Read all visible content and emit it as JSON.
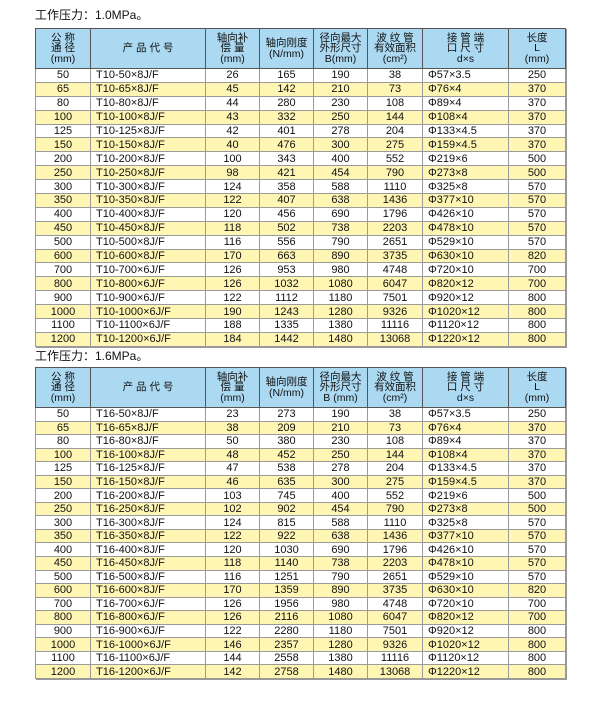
{
  "colors": {
    "header_bg": "#acd9f2",
    "alt_row_bg": "#fff6b4"
  },
  "headers": [
    "公 称\n通 径\n(mm)",
    "产 品 代 号",
    "轴向补\n偿 量\n(mm)",
    "轴向刚度\n(N/mm)",
    "径向最大\n外形尺寸\nB(mm)",
    "波 纹 管\n有效面积\n(cm²)",
    "接 管 端\n口 尺 寸\nd×s",
    "长度\nL\n(mm)"
  ],
  "headers2": [
    "公 称\n通 径\n(mm)",
    "产 品 代 号",
    "轴向补\n偿 量\n(mm)",
    "轴向刚度\n(N/mm)",
    "径向最大\n外形尺寸\nB (mm)",
    "波 纹 管\n有效面积\n(cm²)",
    "接 管 端\n口 尺 寸\nd×s",
    "长度\nL\n(mm)"
  ],
  "tables": [
    {
      "title": "工作压力：1.0MPa。",
      "rows": [
        [
          "50",
          "T10-50×8J/F",
          "26",
          "165",
          "190",
          "38",
          "Φ57×3.5",
          "250"
        ],
        [
          "65",
          "T10-65×8J/F",
          "45",
          "142",
          "210",
          "73",
          "Φ76×4",
          "370"
        ],
        [
          "80",
          "T10-80×8J/F",
          "44",
          "280",
          "230",
          "108",
          "Φ89×4",
          "370"
        ],
        [
          "100",
          "T10-100×8J/F",
          "43",
          "332",
          "250",
          "144",
          "Φ108×4",
          "370"
        ],
        [
          "125",
          "T10-125×8J/F",
          "42",
          "401",
          "278",
          "204",
          "Φ133×4.5",
          "370"
        ],
        [
          "150",
          "T10-150×8J/F",
          "40",
          "476",
          "300",
          "275",
          "Φ159×4.5",
          "370"
        ],
        [
          "200",
          "T10-200×8J/F",
          "100",
          "343",
          "400",
          "552",
          "Φ219×6",
          "500"
        ],
        [
          "250",
          "T10-250×8J/F",
          "98",
          "421",
          "454",
          "790",
          "Φ273×8",
          "500"
        ],
        [
          "300",
          "T10-300×8J/F",
          "124",
          "358",
          "588",
          "1110",
          "Φ325×8",
          "570"
        ],
        [
          "350",
          "T10-350×8J/F",
          "122",
          "407",
          "638",
          "1436",
          "Φ377×10",
          "570"
        ],
        [
          "400",
          "T10-400×8J/F",
          "120",
          "456",
          "690",
          "1796",
          "Φ426×10",
          "570"
        ],
        [
          "450",
          "T10-450×8J/F",
          "118",
          "502",
          "738",
          "2203",
          "Φ478×10",
          "570"
        ],
        [
          "500",
          "T10-500×8J/F",
          "116",
          "556",
          "790",
          "2651",
          "Φ529×10",
          "570"
        ],
        [
          "600",
          "T10-600×8J/F",
          "170",
          "663",
          "890",
          "3735",
          "Φ630×10",
          "820"
        ],
        [
          "700",
          "T10-700×6J/F",
          "126",
          "953",
          "980",
          "4748",
          "Φ720×10",
          "700"
        ],
        [
          "800",
          "T10-800×6J/F",
          "126",
          "1032",
          "1080",
          "6047",
          "Φ820×12",
          "700"
        ],
        [
          "900",
          "T10-900×6J/F",
          "122",
          "1112",
          "1180",
          "7501",
          "Φ920×12",
          "800"
        ],
        [
          "1000",
          "T10-1000×6J/F",
          "190",
          "1243",
          "1280",
          "9326",
          "Φ1020×12",
          "800"
        ],
        [
          "1100",
          "T10-1100×6J/F",
          "188",
          "1335",
          "1380",
          "11116",
          "Φ1120×12",
          "800"
        ],
        [
          "1200",
          "T10-1200×6J/F",
          "184",
          "1442",
          "1480",
          "13068",
          "Φ1220×12",
          "800"
        ]
      ]
    },
    {
      "title": "工作压力：1.6MPa。",
      "rows": [
        [
          "50",
          "T16-50×8J/F",
          "23",
          "273",
          "190",
          "38",
          "Φ57×3.5",
          "250"
        ],
        [
          "65",
          "T16-65×8J/F",
          "38",
          "209",
          "210",
          "73",
          "Φ76×4",
          "370"
        ],
        [
          "80",
          "T16-80×8J/F",
          "50",
          "380",
          "230",
          "108",
          "Φ89×4",
          "370"
        ],
        [
          "100",
          "T16-100×8J/F",
          "48",
          "452",
          "250",
          "144",
          "Φ108×4",
          "370"
        ],
        [
          "125",
          "T16-125×8J/F",
          "47",
          "538",
          "278",
          "204",
          "Φ133×4.5",
          "370"
        ],
        [
          "150",
          "T16-150×8J/F",
          "46",
          "635",
          "300",
          "275",
          "Φ159×4.5",
          "370"
        ],
        [
          "200",
          "T16-200×8J/F",
          "103",
          "745",
          "400",
          "552",
          "Φ219×6",
          "500"
        ],
        [
          "250",
          "T16-250×8J/F",
          "102",
          "902",
          "454",
          "790",
          "Φ273×8",
          "500"
        ],
        [
          "300",
          "T16-300×8J/F",
          "124",
          "815",
          "588",
          "1110",
          "Φ325×8",
          "570"
        ],
        [
          "350",
          "T16-350×8J/F",
          "122",
          "922",
          "638",
          "1436",
          "Φ377×10",
          "570"
        ],
        [
          "400",
          "T16-400×8J/F",
          "120",
          "1030",
          "690",
          "1796",
          "Φ426×10",
          "570"
        ],
        [
          "450",
          "T16-450×8J/F",
          "118",
          "1140",
          "738",
          "2203",
          "Φ478×10",
          "570"
        ],
        [
          "500",
          "T16-500×8J/F",
          "116",
          "1251",
          "790",
          "2651",
          "Φ529×10",
          "570"
        ],
        [
          "600",
          "T16-600×8J/F",
          "170",
          "1359",
          "890",
          "3735",
          "Φ630×10",
          "820"
        ],
        [
          "700",
          "T16-700×6J/F",
          "126",
          "1956",
          "980",
          "4748",
          "Φ720×10",
          "700"
        ],
        [
          "800",
          "T16-800×6J/F",
          "126",
          "2116",
          "1080",
          "6047",
          "Φ820×12",
          "700"
        ],
        [
          "900",
          "T16-900×6J/F",
          "122",
          "2280",
          "1180",
          "7501",
          "Φ920×12",
          "800"
        ],
        [
          "1000",
          "T16-1000×6J/F",
          "146",
          "2357",
          "1280",
          "9326",
          "Φ1020×12",
          "800"
        ],
        [
          "1100",
          "T16-1100×6J/F",
          "144",
          "2558",
          "1380",
          "11116",
          "Φ1120×12",
          "800"
        ],
        [
          "1200",
          "T16-1200×6J/F",
          "142",
          "2758",
          "1480",
          "13068",
          "Φ1220×12",
          "800"
        ]
      ]
    }
  ]
}
